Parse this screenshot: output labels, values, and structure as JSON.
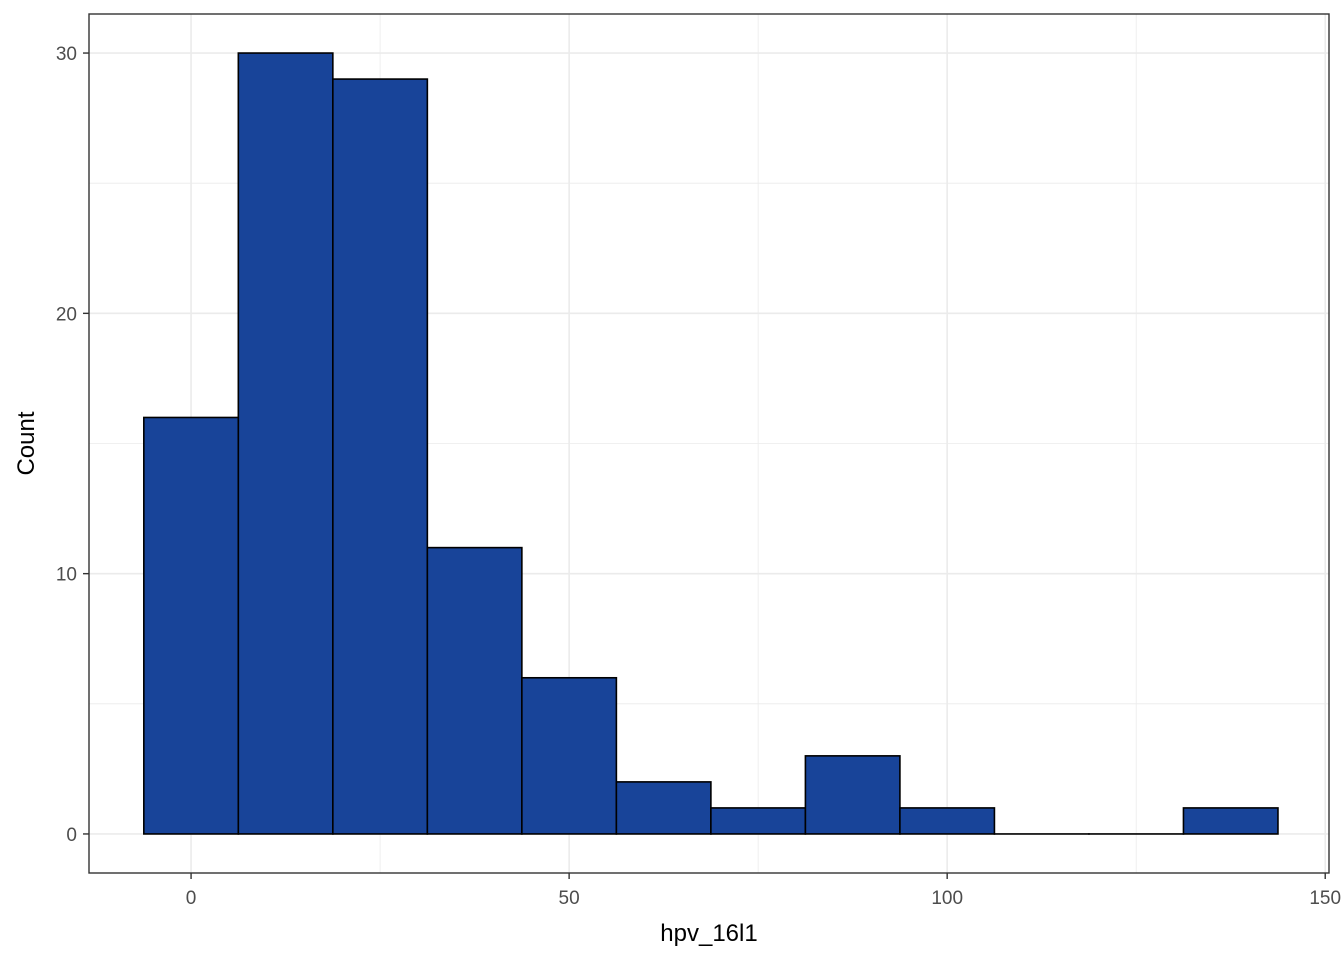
{
  "chart_data": {
    "type": "bar",
    "subtype": "histogram",
    "title": "",
    "xlabel": "hpv_16l1",
    "ylabel": "Count",
    "xlim": [
      -13.5,
      150.5
    ],
    "ylim": [
      -1.5,
      31.5
    ],
    "x_ticks": [
      0,
      50,
      100,
      150
    ],
    "x_tick_labels": [
      "0",
      "50",
      "100",
      "150"
    ],
    "y_ticks": [
      0,
      10,
      20,
      30
    ],
    "y_tick_labels": [
      "0",
      "10",
      "20",
      "30"
    ],
    "bin_width": 12.5,
    "bins": [
      {
        "x0": -6.25,
        "x1": 6.25,
        "count": 16
      },
      {
        "x0": 6.25,
        "x1": 18.75,
        "count": 30
      },
      {
        "x0": 18.75,
        "x1": 31.25,
        "count": 29
      },
      {
        "x0": 31.25,
        "x1": 43.75,
        "count": 11
      },
      {
        "x0": 43.75,
        "x1": 56.25,
        "count": 6
      },
      {
        "x0": 56.25,
        "x1": 68.75,
        "count": 2
      },
      {
        "x0": 68.75,
        "x1": 81.25,
        "count": 1
      },
      {
        "x0": 81.25,
        "x1": 93.75,
        "count": 3
      },
      {
        "x0": 93.75,
        "x1": 106.25,
        "count": 1
      },
      {
        "x0": 106.25,
        "x1": 118.75,
        "count": 0
      },
      {
        "x0": 118.75,
        "x1": 131.25,
        "count": 0
      },
      {
        "x0": 131.25,
        "x1": 143.75,
        "count": 1
      }
    ],
    "grid": true,
    "legend": "none",
    "colors": {
      "fill": "#184499",
      "outline": "#000000",
      "grid": "#ebebeb",
      "panel_border": "#333333"
    }
  }
}
